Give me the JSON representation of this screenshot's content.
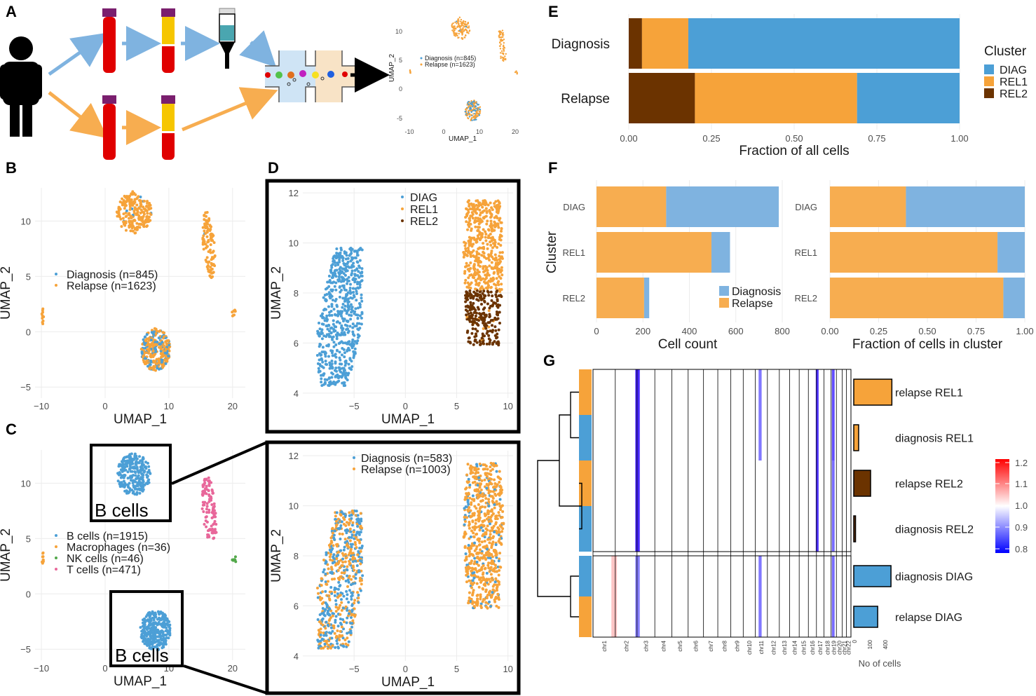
{
  "colors": {
    "blue": "#4c9fd6",
    "orange": "#f6a33a",
    "brown": "#6b3300",
    "pink": "#e8679a",
    "green": "#52a84a",
    "lightblue": "#7fb3e0",
    "lightorange": "#f7ad50",
    "black": "#000000"
  },
  "panels": {
    "a": "A",
    "b": "B",
    "c": "C",
    "d": "D",
    "e": "E",
    "f": "F",
    "g": "G"
  },
  "panel_a": {
    "mini_umap": {
      "xlabel": "UMAP_1",
      "ylabel": "UMAP_2",
      "xticks": [
        "-10",
        "0",
        "10",
        "20"
      ],
      "yticks": [
        "10",
        "5",
        "0",
        "-5"
      ],
      "legend": [
        "Diagnosis (n=845)",
        "Relapse (n=1623)"
      ]
    }
  },
  "chart_data": [
    {
      "id": "B",
      "type": "scatter",
      "xlabel": "UMAP_1",
      "ylabel": "UMAP_2",
      "xlim": [
        -11,
        22
      ],
      "ylim": [
        -6,
        13
      ],
      "xticks": [
        -10,
        0,
        10,
        20
      ],
      "yticks": [
        -5,
        0,
        5,
        10
      ],
      "legend": [
        {
          "name": "Diagnosis (n=845)",
          "color": "#4c9fd6"
        },
        {
          "name": "Relapse (n=1623)",
          "color": "#f6a33a"
        }
      ],
      "clusters": [
        {
          "cx": 4.5,
          "cy": 10.8,
          "rx": 2.8,
          "ry": 1.9,
          "n": 220,
          "mix": 0.05
        },
        {
          "cx": 16.3,
          "cy": 7.8,
          "rx": 1.3,
          "ry": 3.0,
          "n": 110,
          "mix": 0.02,
          "shape": "tri"
        },
        {
          "cx": 7.9,
          "cy": -1.6,
          "rx": 2.3,
          "ry": 1.9,
          "n": 320,
          "mix": 0.35
        },
        {
          "cx": -9.8,
          "cy": 1.5,
          "rx": 0.15,
          "ry": 0.8,
          "n": 10,
          "mix": 0.0
        },
        {
          "cx": 20.2,
          "cy": 1.8,
          "rx": 0.5,
          "ry": 0.5,
          "n": 8,
          "mix": 0.0
        }
      ]
    },
    {
      "id": "C",
      "type": "scatter",
      "xlabel": "UMAP_1",
      "ylabel": "UMAP_2",
      "xlim": [
        -11,
        22
      ],
      "ylim": [
        -6,
        13
      ],
      "xticks": [
        -10,
        0,
        10,
        20
      ],
      "yticks": [
        -5,
        0,
        5,
        10
      ],
      "legend": [
        {
          "name": "B cells (n=1915)",
          "color": "#4c9fd6"
        },
        {
          "name": "Macrophages (n=36)",
          "color": "#f6a33a"
        },
        {
          "name": "NK cells (n=46)",
          "color": "#52a84a"
        },
        {
          "name": "T cells (n=471)",
          "color": "#e8679a"
        }
      ],
      "annotations": [
        "B cells",
        "B cells"
      ]
    },
    {
      "id": "D-top",
      "type": "scatter",
      "xlabel": "UMAP_1",
      "ylabel": "UMAP_2",
      "xlim": [
        -10,
        10.5
      ],
      "ylim": [
        3.8,
        12.2
      ],
      "xticks": [
        -5,
        0,
        5,
        10
      ],
      "yticks": [
        4,
        6,
        8,
        10,
        12
      ],
      "legend": [
        {
          "name": "DIAG",
          "color": "#4c9fd6"
        },
        {
          "name": "REL1",
          "color": "#f6a33a"
        },
        {
          "name": "REL2",
          "color": "#6b3300"
        }
      ]
    },
    {
      "id": "D-bottom",
      "type": "scatter",
      "xlabel": "UMAP_1",
      "ylabel": "UMAP_2",
      "xlim": [
        -10,
        10.5
      ],
      "ylim": [
        3.8,
        12.2
      ],
      "xticks": [
        -5,
        0,
        5,
        10
      ],
      "yticks": [
        4,
        6,
        8,
        10,
        12
      ],
      "legend": [
        {
          "name": "Diagnosis (n=583)",
          "color": "#4c9fd6"
        },
        {
          "name": "Relapse (n=1003)",
          "color": "#f6a33a"
        }
      ]
    },
    {
      "id": "E",
      "type": "bar",
      "orientation": "horizontal-stacked",
      "categories": [
        "Diagnosis",
        "Relapse"
      ],
      "series": [
        {
          "name": "REL2",
          "values": [
            0.04,
            0.2
          ]
        },
        {
          "name": "REL1",
          "values": [
            0.14,
            0.49
          ]
        },
        {
          "name": "DIAG",
          "values": [
            0.82,
            0.31
          ]
        }
      ],
      "xlabel": "Fraction of all cells",
      "xlim": [
        0,
        1
      ],
      "xticks": [
        "0.00",
        "0.25",
        "0.50",
        "0.75",
        "1.00"
      ],
      "legend_title": "Cluster",
      "legend": [
        "DIAG",
        "REL1",
        "REL2"
      ]
    },
    {
      "id": "F-left",
      "type": "bar",
      "orientation": "horizontal-stacked",
      "categories": [
        "DIAG",
        "REL1",
        "REL2"
      ],
      "series": [
        {
          "name": "Relapse",
          "values": [
            300,
            495,
            205
          ]
        },
        {
          "name": "Diagnosis",
          "values": [
            485,
            80,
            22
          ]
        }
      ],
      "xlabel": "Cell count",
      "ylabel": "Cluster",
      "xlim": [
        0,
        850
      ],
      "xticks": [
        "0",
        "200",
        "400",
        "600",
        "800"
      ],
      "legend": [
        "Diagnosis",
        "Relapse"
      ]
    },
    {
      "id": "F-right",
      "type": "bar",
      "orientation": "horizontal-stacked",
      "categories": [
        "DIAG",
        "REL1",
        "REL2"
      ],
      "series": [
        {
          "name": "Relapse",
          "values": [
            0.39,
            0.86,
            0.89
          ]
        },
        {
          "name": "Diagnosis",
          "values": [
            0.61,
            0.14,
            0.11
          ]
        }
      ],
      "xlabel": "Fraction of cells in cluster",
      "xlim": [
        0,
        1
      ],
      "xticks": [
        "0.00",
        "0.25",
        "0.50",
        "0.75",
        "1.00"
      ]
    },
    {
      "id": "G",
      "type": "heatmap",
      "rows": [
        "relapse REL1",
        "diagnosis REL1",
        "relapse REL2",
        "diagnosis REL2",
        "diagnosis DIAG",
        "relapse DIAG"
      ],
      "row_groups": [
        "Relapse",
        "Diagnosis",
        "Relapse",
        "Diagnosis",
        "Diagnosis",
        "Relapse"
      ],
      "chromosomes": [
        "chr1",
        "chr2",
        "chr3",
        "chr4",
        "chr5",
        "chr6",
        "chr7",
        "chr8",
        "chr9",
        "chr10",
        "chr11",
        "chr12",
        "chr13",
        "chr14",
        "chr15",
        "chr16",
        "chr17",
        "chr18",
        "chr19",
        "chr20",
        "chr21",
        "chr22"
      ],
      "chrom_widths": [
        248,
        242,
        198,
        190,
        181,
        171,
        159,
        145,
        138,
        134,
        135,
        133,
        114,
        107,
        102,
        90,
        83,
        80,
        59,
        64,
        47,
        51
      ],
      "cell_counts": [
        430,
        55,
        190,
        20,
        420,
        270
      ],
      "count_label": "No of cells",
      "count_ticks": [
        "0",
        "100",
        "400"
      ],
      "colorbar": {
        "ticks": [
          "1.2",
          "1.1",
          "1.0",
          "0.9",
          "0.8"
        ],
        "range": [
          0.8,
          1.2
        ]
      },
      "features": [
        {
          "chrom": "chr3",
          "pos": 0.03,
          "value": 0.82,
          "rows": [
            0,
            1,
            2,
            3
          ]
        },
        {
          "chrom": "chr17",
          "pos": 0.1,
          "value": 0.84,
          "rows": [
            0,
            1,
            2,
            3
          ]
        },
        {
          "chrom": "chr19",
          "pos": 0.4,
          "value": 0.88,
          "rows": [
            0,
            1
          ]
        },
        {
          "chrom": "chr19",
          "pos": 0.4,
          "value": 0.93,
          "rows": [
            2,
            3,
            4,
            5
          ]
        },
        {
          "chrom": "chr11",
          "pos": 0.4,
          "value": 0.95,
          "rows": [
            0,
            1,
            4,
            5
          ]
        },
        {
          "chrom": "chr1",
          "pos": 0.95,
          "value": 1.05,
          "rows": [
            4,
            5
          ]
        },
        {
          "chrom": "chr3",
          "pos": 0.03,
          "value": 0.96,
          "rows": [
            4,
            5
          ]
        }
      ]
    }
  ]
}
